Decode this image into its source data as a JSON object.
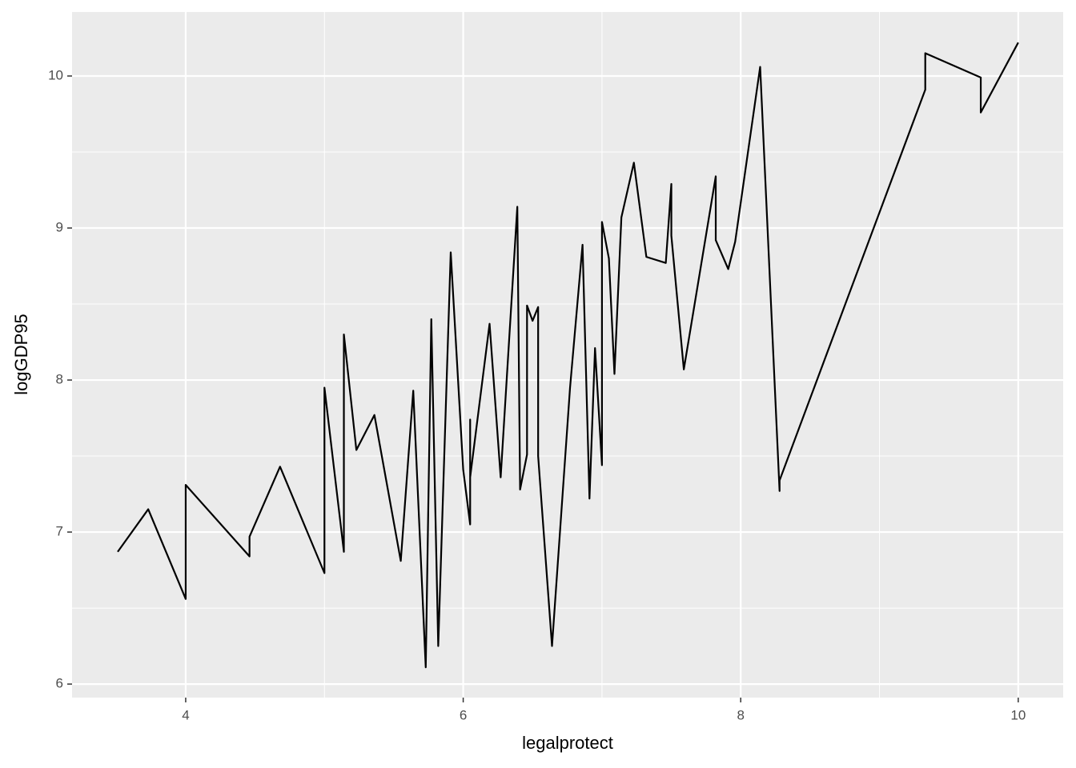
{
  "chart_data": {
    "type": "line",
    "x_label": "legalprotect",
    "y_label": "logGDP95",
    "x": [
      3.51,
      3.73,
      4.0,
      4.0,
      4.46,
      4.46,
      4.68,
      5.0,
      5.0,
      5.14,
      5.14,
      5.23,
      5.36,
      5.55,
      5.64,
      5.73,
      5.77,
      5.82,
      5.91,
      6.0,
      6.05,
      6.05,
      6.05,
      6.19,
      6.27,
      6.39,
      6.41,
      6.46,
      6.46,
      6.5,
      6.54,
      6.54,
      6.64,
      6.77,
      6.86,
      6.91,
      6.95,
      7.0,
      7.0,
      7.05,
      7.09,
      7.14,
      7.23,
      7.32,
      7.46,
      7.5,
      7.5,
      7.59,
      7.82,
      7.82,
      7.91,
      7.96,
      8.14,
      8.28,
      8.28,
      9.33,
      9.33,
      9.73,
      9.73,
      10.0
    ],
    "values": [
      6.87,
      7.15,
      6.56,
      7.31,
      6.84,
      6.97,
      7.43,
      6.73,
      7.95,
      6.87,
      8.3,
      7.54,
      7.77,
      6.81,
      7.93,
      6.11,
      8.4,
      6.25,
      8.84,
      7.41,
      7.05,
      7.74,
      7.36,
      8.37,
      7.36,
      9.14,
      7.28,
      7.51,
      8.49,
      8.39,
      8.48,
      7.5,
      6.25,
      7.95,
      8.89,
      7.22,
      8.21,
      7.44,
      9.04,
      8.8,
      8.04,
      9.07,
      9.43,
      8.81,
      8.77,
      9.29,
      8.95,
      8.07,
      9.34,
      8.92,
      8.73,
      8.91,
      10.06,
      7.27,
      7.34,
      9.91,
      10.15,
      9.99,
      9.76,
      10.22
    ],
    "color": "#000000",
    "xlim": [
      3.181,
      10.324
    ],
    "xticks": [
      4,
      6,
      8,
      10
    ],
    "ylim": [
      5.911,
      10.421
    ],
    "yticks": [
      6,
      7,
      8,
      9,
      10
    ],
    "grid": true
  }
}
